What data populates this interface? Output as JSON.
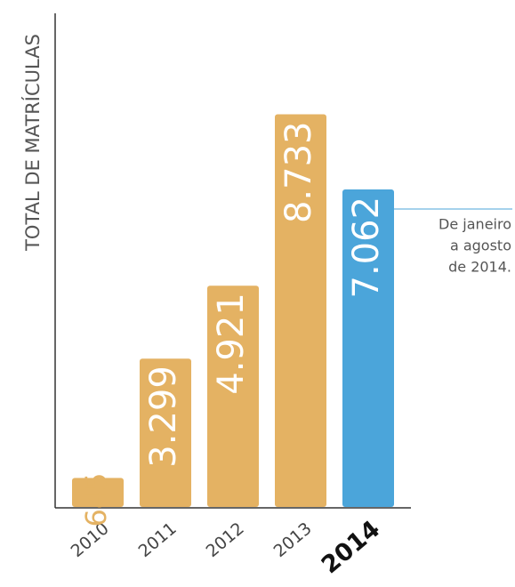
{
  "chart_data": {
    "type": "bar",
    "y_label": "TOTAL DE MATRÍCULAS",
    "categories": [
      "2010",
      "2011",
      "2012",
      "2013",
      "2014"
    ],
    "values": [
      645,
      3299,
      4921,
      8733,
      7062
    ],
    "value_labels": [
      "645",
      "3.299",
      "4.921",
      "8.733",
      "7.062"
    ],
    "colors": [
      "#e4b263",
      "#e4b263",
      "#e4b263",
      "#e4b263",
      "#4ba5da"
    ],
    "ylim": [
      0,
      9000
    ],
    "annotation": [
      "De janeiro",
      "a agosto",
      "de 2014."
    ]
  }
}
